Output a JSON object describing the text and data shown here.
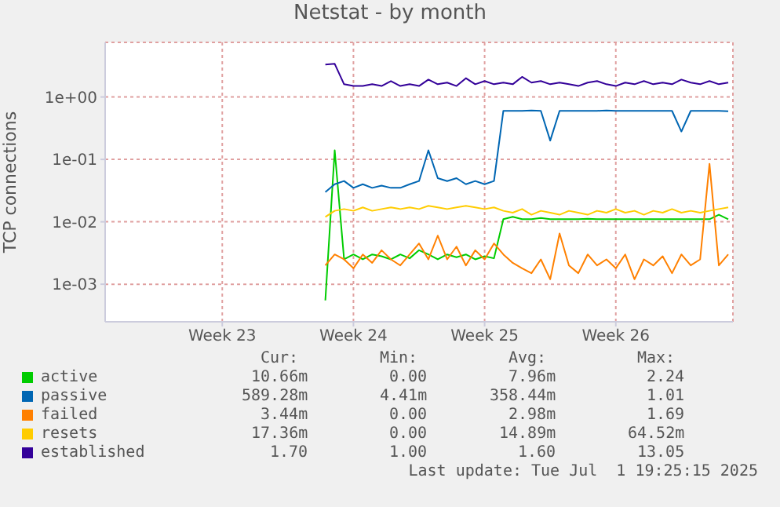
{
  "chart_data": {
    "type": "line",
    "title": "Netstat - by month",
    "ylabel": "TCP connections",
    "categories": [
      null,
      null,
      null,
      null,
      null,
      null,
      null,
      null,
      null,
      null,
      null,
      null,
      "Week 23",
      null,
      null,
      null,
      null,
      null,
      null,
      null,
      null,
      null,
      null,
      null,
      null,
      null,
      "Week 24",
      null,
      null,
      null,
      null,
      null,
      null,
      null,
      null,
      null,
      null,
      null,
      null,
      null,
      "Week 25",
      null,
      null,
      null,
      null,
      null,
      null,
      null,
      null,
      null,
      null,
      null,
      null,
      null,
      "Week 26",
      null,
      null,
      null,
      null,
      null,
      null,
      null,
      null,
      null,
      null,
      null,
      null
    ],
    "log": true,
    "ylim": [
      0.00025,
      7.5
    ],
    "yticks": [
      {
        "value": 0.001,
        "label": "1e-03"
      },
      {
        "value": 0.01,
        "label": "1e-02"
      },
      {
        "value": 0.1,
        "label": "1e-01"
      },
      {
        "value": 1,
        "label": "1e+00"
      }
    ],
    "grid": true,
    "legend": "bottom",
    "marker": "none",
    "line_style": "solid",
    "series": [
      {
        "name": "active",
        "color": "#00cc00",
        "values": [
          null,
          null,
          null,
          null,
          null,
          null,
          null,
          null,
          null,
          null,
          null,
          null,
          null,
          null,
          null,
          null,
          null,
          null,
          null,
          null,
          null,
          null,
          null,
          0.00055,
          0.14,
          0.0025,
          0.003,
          0.0025,
          0.003,
          0.0028,
          0.0025,
          0.003,
          0.0026,
          0.0035,
          0.003,
          0.0025,
          0.003,
          0.0027,
          0.003,
          0.0025,
          0.0028,
          0.0026,
          0.011,
          0.012,
          0.011,
          0.011,
          0.0115,
          0.011,
          0.011,
          0.011,
          0.011,
          0.0112,
          0.011,
          0.011,
          0.011,
          0.011,
          0.011,
          0.011,
          0.011,
          0.011,
          0.011,
          0.011,
          0.011,
          0.011,
          0.011,
          0.013,
          0.011
        ]
      },
      {
        "name": "passive",
        "color": "#0066b3",
        "values": [
          null,
          null,
          null,
          null,
          null,
          null,
          null,
          null,
          null,
          null,
          null,
          null,
          null,
          null,
          null,
          null,
          null,
          null,
          null,
          null,
          null,
          null,
          null,
          0.03,
          0.04,
          0.045,
          0.035,
          0.04,
          0.035,
          0.038,
          0.035,
          0.035,
          0.04,
          0.045,
          0.14,
          0.05,
          0.045,
          0.05,
          0.04,
          0.045,
          0.04,
          0.045,
          0.6,
          0.6,
          0.6,
          0.61,
          0.6,
          0.2,
          0.6,
          0.6,
          0.6,
          0.6,
          0.6,
          0.61,
          0.6,
          0.6,
          0.6,
          0.6,
          0.6,
          0.6,
          0.6,
          0.28,
          0.6,
          0.6,
          0.6,
          0.6,
          0.59
        ]
      },
      {
        "name": "failed",
        "color": "#ff8000",
        "values": [
          null,
          null,
          null,
          null,
          null,
          null,
          null,
          null,
          null,
          null,
          null,
          null,
          null,
          null,
          null,
          null,
          null,
          null,
          null,
          null,
          null,
          null,
          null,
          0.002,
          0.003,
          0.0025,
          0.0018,
          0.003,
          0.0022,
          0.0035,
          0.0025,
          0.002,
          0.003,
          0.0045,
          0.0025,
          0.006,
          0.0025,
          0.004,
          0.002,
          0.0035,
          0.0025,
          0.0045,
          0.003,
          0.0022,
          0.0018,
          0.0015,
          0.0025,
          0.0012,
          0.0065,
          0.002,
          0.0015,
          0.003,
          0.002,
          0.0025,
          0.0018,
          0.003,
          0.0012,
          0.0025,
          0.002,
          0.0028,
          0.0015,
          0.003,
          0.002,
          0.0025,
          0.085,
          0.002,
          0.003
        ]
      },
      {
        "name": "resets",
        "color": "#ffcc00",
        "values": [
          null,
          null,
          null,
          null,
          null,
          null,
          null,
          null,
          null,
          null,
          null,
          null,
          null,
          null,
          null,
          null,
          null,
          null,
          null,
          null,
          null,
          null,
          null,
          0.012,
          0.015,
          0.016,
          0.015,
          0.017,
          0.015,
          0.016,
          0.017,
          0.016,
          0.017,
          0.016,
          0.018,
          0.017,
          0.016,
          0.017,
          0.018,
          0.017,
          0.016,
          0.017,
          0.015,
          0.014,
          0.016,
          0.013,
          0.015,
          0.014,
          0.013,
          0.015,
          0.014,
          0.013,
          0.015,
          0.014,
          0.016,
          0.014,
          0.015,
          0.013,
          0.015,
          0.014,
          0.016,
          0.014,
          0.015,
          0.014,
          0.015,
          0.016,
          0.017
        ]
      },
      {
        "name": "established",
        "color": "#330099",
        "values": [
          null,
          null,
          null,
          null,
          null,
          null,
          null,
          null,
          null,
          null,
          null,
          null,
          null,
          null,
          null,
          null,
          null,
          null,
          null,
          null,
          null,
          null,
          null,
          3.3,
          3.4,
          1.6,
          1.5,
          1.5,
          1.6,
          1.5,
          1.8,
          1.5,
          1.6,
          1.5,
          1.9,
          1.6,
          1.7,
          1.5,
          2.0,
          1.6,
          1.8,
          1.6,
          1.7,
          1.6,
          2.1,
          1.7,
          1.8,
          1.6,
          1.7,
          1.6,
          1.5,
          1.7,
          1.8,
          1.6,
          1.5,
          1.7,
          1.6,
          1.8,
          1.6,
          1.7,
          1.6,
          1.9,
          1.7,
          1.6,
          1.8,
          1.6,
          1.7
        ]
      }
    ],
    "annotations": [
      "Cur:",
      "Min:",
      "Avg:",
      "Max:",
      "10.66m",
      "0.00",
      "7.96m",
      "2.24",
      "589.28m",
      "4.41m",
      "358.44m",
      "1.01",
      "3.44m",
      "0.00",
      "2.98m",
      "1.69",
      "17.36m",
      "0.00",
      "14.89m",
      "64.52m",
      "1.70",
      "1.00",
      "1.60",
      "13.05",
      "Last update: Tue Jul  1 19:25:15 2025"
    ]
  }
}
